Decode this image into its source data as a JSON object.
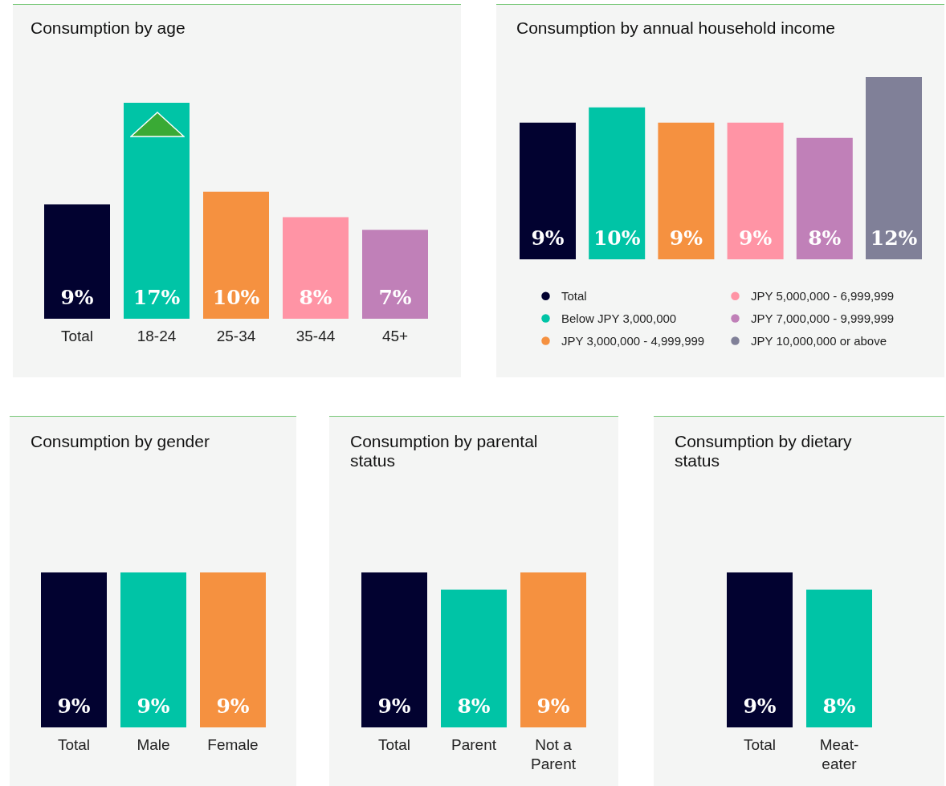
{
  "chart_data": [
    {
      "type": "bar",
      "title": "Consumption by age",
      "categories": [
        "Total",
        "18-24",
        "25-34",
        "35-44",
        "45+"
      ],
      "values": [
        9,
        17,
        10,
        8,
        7
      ],
      "value_labels": [
        "9%",
        "17%",
        "10%",
        "8%",
        "7%"
      ],
      "colors": [
        "#020230",
        "#00c4a6",
        "#f59140",
        "#ff94a5",
        "#c080b8"
      ],
      "tick_labels": "x"
    },
    {
      "type": "bar",
      "title": "Consumption by annual household income",
      "categories": [
        null
      ],
      "series": [
        {
          "name": "Total",
          "color": "#020230",
          "values": [
            9
          ],
          "value_labels": [
            "9%"
          ]
        },
        {
          "name": "Below JPY 3,000,000",
          "color": "#00c4a6",
          "values": [
            10
          ],
          "value_labels": [
            "10%"
          ]
        },
        {
          "name": "JPY 3,000,000 - 4,999,999",
          "color": "#f59140",
          "values": [
            9
          ],
          "value_labels": [
            "9%"
          ]
        },
        {
          "name": "JPY 5,000,000 - 6,999,999",
          "color": "#ff94a5",
          "values": [
            9
          ],
          "value_labels": [
            "9%"
          ]
        },
        {
          "name": "JPY 7,000,000 - 9,999,999",
          "color": "#c080b8",
          "values": [
            8
          ],
          "value_labels": [
            "8%"
          ]
        },
        {
          "name": "JPY 10,000,000 or above",
          "color": "#808098",
          "values": [
            12
          ],
          "value_labels": [
            "12%"
          ]
        }
      ],
      "tick_labels": false,
      "legend": "bottom"
    },
    {
      "type": "bar",
      "title": "Consumption by gender",
      "categories": [
        "Total",
        "Male",
        "Female"
      ],
      "values": [
        9,
        9,
        9
      ],
      "value_labels": [
        "9%",
        "9%",
        "9%"
      ],
      "colors": [
        "#020230",
        "#00c4a6",
        "#f59140"
      ],
      "tick_labels": "x"
    },
    {
      "type": "bar",
      "title": "Consumption by parental status",
      "categories": [
        "Total",
        "Parent",
        "Not a Parent"
      ],
      "values": [
        9,
        8,
        9
      ],
      "value_labels": [
        "9%",
        "8%",
        "9%"
      ],
      "colors": [
        "#020230",
        "#00c4a6",
        "#f59140"
      ],
      "tick_labels": "x"
    },
    {
      "type": "bar",
      "title": "Consumption by dietary status",
      "categories": [
        "Total",
        "Meat-eater"
      ],
      "values": [
        9,
        8
      ],
      "value_labels": [
        "9%",
        "8%"
      ],
      "colors": [
        "#020230",
        "#00c4a6"
      ],
      "tick_labels": "x"
    }
  ]
}
